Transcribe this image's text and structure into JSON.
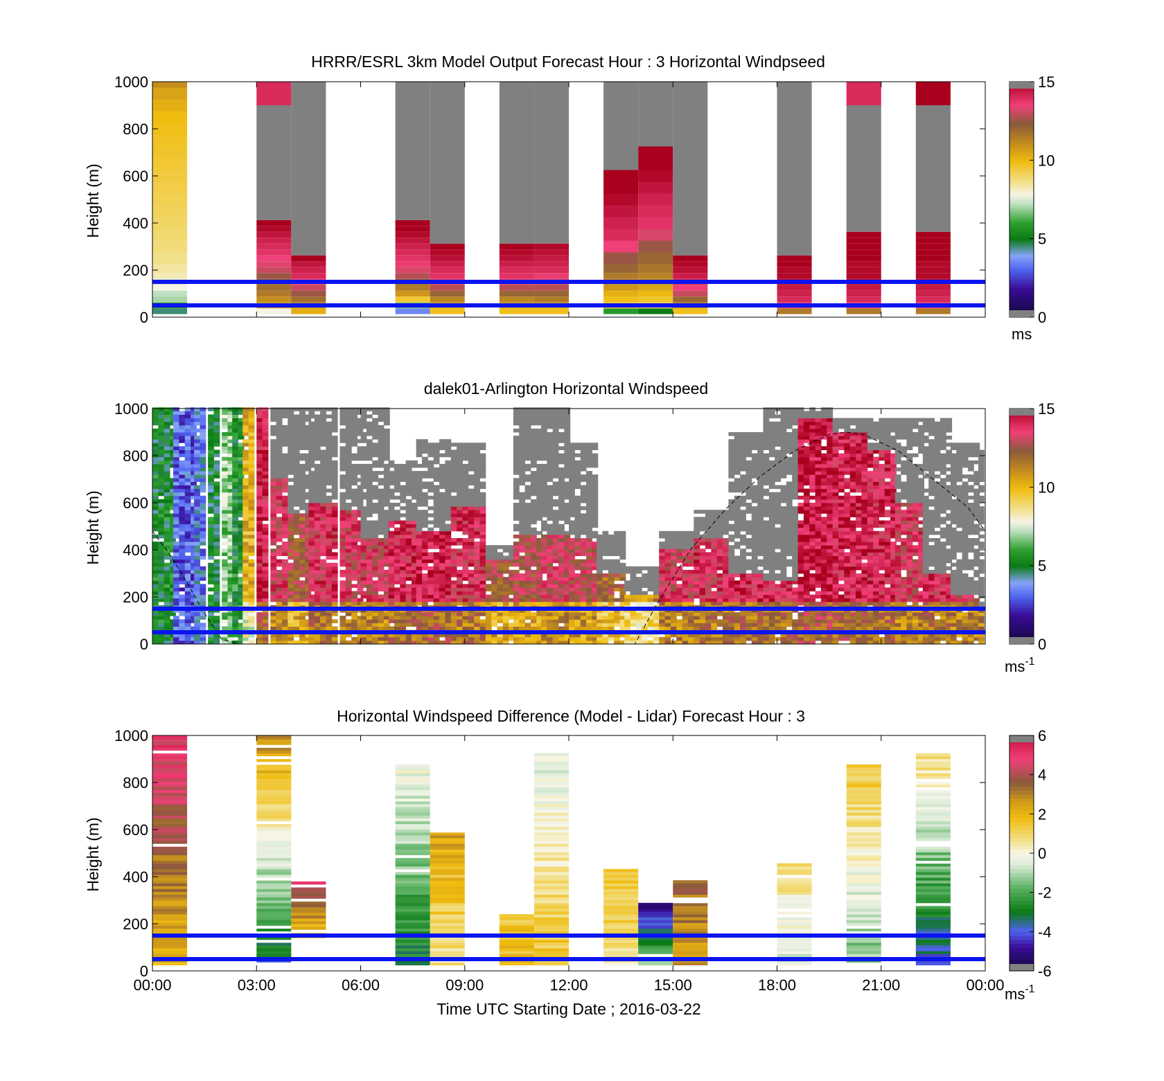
{
  "chart_data": [
    {
      "type": "heatmap",
      "title": "HRRR/ESRL 3km Model Output   Forecast Hour : 3 Horizontal Windpseed",
      "ylabel": "Height (m)",
      "ylim": [
        0,
        1000
      ],
      "yticks": [
        "0",
        "200",
        "400",
        "600",
        "800",
        "1000"
      ],
      "xlim_hours": [
        0,
        24
      ],
      "colorbar": {
        "ticks": [
          "0",
          "5",
          "10",
          "15"
        ],
        "range": [
          0,
          15
        ],
        "unit": "ms",
        "unit_sup": ""
      },
      "reference_lines_m": [
        50,
        150
      ],
      "columns": [
        {
          "start_h": 0,
          "end_h": 1,
          "heights_m": [
            25,
            50,
            75,
            100,
            125,
            150,
            175,
            200,
            250,
            300,
            350,
            400,
            450,
            500,
            550,
            600,
            650,
            700,
            750,
            800,
            850,
            900,
            950,
            1000
          ],
          "speeds": [
            4.5,
            5.8,
            7.0,
            7.2,
            7.8,
            7.5,
            8.2,
            8.4,
            8.6,
            8.8,
            8.9,
            9.0,
            9.1,
            9.2,
            9.3,
            9.4,
            9.5,
            9.6,
            9.7,
            9.8,
            9.9,
            10.2,
            10.5,
            11.0
          ]
        },
        {
          "start_h": 3,
          "end_h": 4,
          "heights_m": [
            25,
            50,
            75,
            100,
            125,
            150,
            175,
            200,
            225,
            250,
            275,
            300,
            325,
            350,
            375,
            400
          ],
          "speeds": [
            7.8,
            10.5,
            11.0,
            11.5,
            11.8,
            12.0,
            12.5,
            13.0,
            13.3,
            13.5,
            13.8,
            14.0,
            14.2,
            14.5,
            14.8,
            15.0
          ],
          "gray_top_m": 900,
          "cap_speed": 14.0
        },
        {
          "start_h": 4,
          "end_h": 5,
          "heights_m": [
            25,
            50,
            75,
            100,
            125,
            150,
            175,
            200,
            225,
            250
          ],
          "speeds": [
            10.2,
            11.0,
            11.8,
            12.5,
            13.0,
            13.5,
            14.0,
            14.2,
            14.5,
            15.0
          ],
          "gray_top_m": 1000
        },
        {
          "start_h": 7,
          "end_h": 8,
          "heights_m": [
            25,
            50,
            75,
            100,
            125,
            150,
            175,
            200,
            225,
            250,
            275,
            300,
            325,
            350,
            375,
            400
          ],
          "speeds": [
            3.5,
            6.5,
            9.5,
            10.8,
            11.5,
            12.0,
            12.8,
            13.2,
            13.6,
            13.8,
            14.0,
            14.2,
            14.5,
            14.8,
            15.0,
            15.2
          ],
          "gray_top_m": 1000
        },
        {
          "start_h": 8,
          "end_h": 9,
          "heights_m": [
            25,
            50,
            75,
            100,
            125,
            150,
            175,
            200,
            225,
            250,
            275,
            300
          ],
          "speeds": [
            9.8,
            10.5,
            11.2,
            12.0,
            12.8,
            13.3,
            13.8,
            14.0,
            14.3,
            14.6,
            14.8,
            15.0
          ],
          "gray_top_m": 1000
        },
        {
          "start_h": 10,
          "end_h": 11,
          "heights_m": [
            25,
            50,
            75,
            100,
            125,
            150,
            175,
            200,
            225,
            250,
            275,
            300
          ],
          "speeds": [
            9.8,
            10.5,
            11.2,
            12.0,
            12.8,
            13.3,
            13.8,
            14.0,
            14.3,
            14.6,
            14.8,
            15.0
          ],
          "gray_top_m": 1000
        },
        {
          "start_h": 11,
          "end_h": 12,
          "heights_m": [
            25,
            50,
            75,
            100,
            125,
            150,
            175,
            200,
            225,
            250,
            275,
            300
          ],
          "speeds": [
            9.8,
            10.5,
            11.5,
            12.0,
            12.8,
            13.2,
            13.6,
            14.0,
            14.2,
            14.4,
            14.6,
            14.8
          ],
          "gray_top_m": 1000
        },
        {
          "start_h": 13,
          "end_h": 14,
          "heights_m": [
            25,
            50,
            75,
            100,
            125,
            150,
            175,
            200,
            250,
            300,
            350,
            400,
            450,
            500,
            550,
            600
          ],
          "speeds": [
            5.8,
            9.5,
            9.8,
            10.2,
            10.8,
            11.2,
            11.5,
            12.0,
            12.5,
            13.5,
            14.0,
            14.2,
            14.5,
            14.8,
            15.0,
            15.2
          ],
          "gray_top_m": 1000
        },
        {
          "start_h": 14,
          "end_h": 15,
          "heights_m": [
            25,
            50,
            75,
            100,
            125,
            150,
            175,
            200,
            250,
            300,
            350,
            400,
            450,
            500,
            550,
            600,
            650,
            700
          ],
          "speeds": [
            5.0,
            9.2,
            9.6,
            10.0,
            10.5,
            11.0,
            11.3,
            11.6,
            12.0,
            12.5,
            13.2,
            13.8,
            14.0,
            14.2,
            14.5,
            14.8,
            15.0,
            15.2
          ],
          "gray_top_m": 1000
        },
        {
          "start_h": 15,
          "end_h": 16,
          "heights_m": [
            25,
            50,
            75,
            100,
            125,
            150,
            175,
            200,
            225,
            250
          ],
          "speeds": [
            9.8,
            11.0,
            12.0,
            13.0,
            13.5,
            14.0,
            14.3,
            14.6,
            14.8,
            15.0
          ],
          "gray_top_m": 1000
        },
        {
          "start_h": 18,
          "end_h": 19,
          "heights_m": [
            25,
            50,
            75,
            100,
            125,
            150,
            175,
            200,
            225,
            250
          ],
          "speeds": [
            11.5,
            13.5,
            14.0,
            14.2,
            14.4,
            14.6,
            14.8,
            14.8,
            15.0,
            15.0
          ],
          "gray_top_m": 1000
        },
        {
          "start_h": 20,
          "end_h": 21,
          "heights_m": [
            25,
            50,
            75,
            100,
            125,
            150,
            175,
            200,
            225,
            250,
            275,
            300,
            325,
            350
          ],
          "speeds": [
            11.5,
            13.5,
            14.0,
            14.2,
            14.4,
            14.6,
            14.8,
            14.8,
            14.8,
            15.0,
            15.0,
            15.0,
            15.2,
            15.2
          ],
          "gray_top_m": 900,
          "cap_speed": 14.0
        },
        {
          "start_h": 22,
          "end_h": 23,
          "heights_m": [
            25,
            50,
            75,
            100,
            125,
            150,
            175,
            200,
            225,
            250,
            275,
            300,
            325,
            350
          ],
          "speeds": [
            11.5,
            13.5,
            14.0,
            14.2,
            14.4,
            14.6,
            14.8,
            14.8,
            14.8,
            15.0,
            15.0,
            15.0,
            15.2,
            15.2
          ],
          "gray_top_m": 900,
          "cap_speed": 15.2
        }
      ]
    },
    {
      "type": "heatmap",
      "title": "dalek01-Arlington  Horizontal Windspeed",
      "ylabel": "Height (m)",
      "ylim": [
        0,
        1000
      ],
      "yticks": [
        "0",
        "200",
        "400",
        "600",
        "800",
        "1000"
      ],
      "xlim_hours": [
        0,
        24
      ],
      "colorbar": {
        "ticks": [
          "0",
          "5",
          "10",
          "15"
        ],
        "range": [
          0,
          15
        ],
        "unit": "ms",
        "unit_sup": "-1"
      },
      "reference_lines_m": [
        50,
        150
      ],
      "cloud_base_curve": {
        "x_hours": [
          0,
          0.5,
          1,
          1.5,
          2.0,
          2.5,
          13.9,
          14.5,
          15.5,
          16.5,
          17.5,
          18.5,
          19.5,
          20.0,
          20.5,
          21.5,
          22.5,
          23.5,
          24
        ],
        "height_m": [
          480,
          380,
          260,
          130,
          20,
          0,
          0,
          160,
          400,
          570,
          710,
          820,
          890,
          900,
          890,
          820,
          700,
          580,
          480
        ]
      },
      "segments": [
        {
          "start_h": 0.0,
          "end_h": 0.6,
          "mean_speed": 5.2,
          "top_m": 1000,
          "sat_top_m": 1000
        },
        {
          "start_h": 0.6,
          "end_h": 1.2,
          "mean_speed": 3.0,
          "top_m": 1000,
          "sat_top_m": 1000
        },
        {
          "start_h": 1.2,
          "end_h": 1.6,
          "mean_speed": 3.5,
          "top_m": 1000,
          "sat_top_m": 1000
        },
        {
          "start_h": 1.6,
          "end_h": 2.0,
          "mean_speed": 5.0,
          "top_m": 1000,
          "sat_top_m": 1000
        },
        {
          "start_h": 2.0,
          "end_h": 2.3,
          "mean_speed": 6.8,
          "top_m": 1000,
          "sat_top_m": 1000
        },
        {
          "start_h": 2.3,
          "end_h": 2.6,
          "mean_speed": 5.5,
          "top_m": 1000,
          "sat_top_m": 1000
        },
        {
          "start_h": 2.6,
          "end_h": 3.0,
          "mean_speed": 10.2,
          "top_m": 1000,
          "sat_top_m": 1000
        },
        {
          "start_h": 3.0,
          "end_h": 3.4,
          "mean_speed": 14.0,
          "top_m": 1000,
          "sat_top_m": 1000
        },
        {
          "start_h": 3.4,
          "end_h": 3.9,
          "mean_speed": 13.5,
          "top_m": 700,
          "sat_top_m": 1000
        },
        {
          "start_h": 3.9,
          "end_h": 4.5,
          "mean_speed": 12.5,
          "top_m": 550,
          "sat_top_m": 1000
        },
        {
          "start_h": 4.5,
          "end_h": 5.4,
          "mean_speed": 13.8,
          "top_m": 600,
          "sat_top_m": 1000
        },
        {
          "start_h": 5.4,
          "end_h": 6.0,
          "mean_speed": 13.5,
          "top_m": 560,
          "sat_top_m": 1000
        },
        {
          "start_h": 6.0,
          "end_h": 6.8,
          "mean_speed": 13.5,
          "top_m": 450,
          "sat_top_m": 1000
        },
        {
          "start_h": 6.8,
          "end_h": 7.6,
          "mean_speed": 14.0,
          "top_m": 520,
          "sat_top_m": 780
        },
        {
          "start_h": 7.6,
          "end_h": 8.6,
          "mean_speed": 14.2,
          "top_m": 470,
          "sat_top_m": 860
        },
        {
          "start_h": 8.6,
          "end_h": 9.6,
          "mean_speed": 13.8,
          "top_m": 580,
          "sat_top_m": 850
        },
        {
          "start_h": 9.6,
          "end_h": 10.4,
          "mean_speed": 12.5,
          "top_m": 360,
          "sat_top_m": 420
        },
        {
          "start_h": 10.4,
          "end_h": 11.2,
          "mean_speed": 12.8,
          "top_m": 460,
          "sat_top_m": 1000
        },
        {
          "start_h": 11.2,
          "end_h": 12.0,
          "mean_speed": 13.2,
          "top_m": 460,
          "sat_top_m": 1000
        },
        {
          "start_h": 12.0,
          "end_h": 12.8,
          "mean_speed": 13.0,
          "top_m": 440,
          "sat_top_m": 850
        },
        {
          "start_h": 12.8,
          "end_h": 13.6,
          "mean_speed": 12.0,
          "top_m": 300,
          "sat_top_m": 480
        },
        {
          "start_h": 13.6,
          "end_h": 14.6,
          "mean_speed": 11.0,
          "top_m": 200,
          "sat_top_m": 320
        },
        {
          "start_h": 14.6,
          "end_h": 15.6,
          "mean_speed": 13.5,
          "top_m": 400,
          "sat_top_m": 480
        },
        {
          "start_h": 15.6,
          "end_h": 16.6,
          "mean_speed": 13.8,
          "top_m": 440,
          "sat_top_m": 560
        },
        {
          "start_h": 16.6,
          "end_h": 17.6,
          "mean_speed": 14.0,
          "top_m": 300,
          "sat_top_m": 900
        },
        {
          "start_h": 17.6,
          "end_h": 18.6,
          "mean_speed": 14.0,
          "top_m": 260,
          "sat_top_m": 1000
        },
        {
          "start_h": 18.6,
          "end_h": 19.6,
          "mean_speed": 14.5,
          "top_m": 950,
          "sat_top_m": 1000
        },
        {
          "start_h": 19.6,
          "end_h": 20.6,
          "mean_speed": 14.2,
          "top_m": 900,
          "sat_top_m": 950
        },
        {
          "start_h": 20.6,
          "end_h": 21.4,
          "mean_speed": 14.0,
          "top_m": 820,
          "sat_top_m": 950
        },
        {
          "start_h": 21.4,
          "end_h": 22.2,
          "mean_speed": 13.5,
          "top_m": 600,
          "sat_top_m": 950
        },
        {
          "start_h": 22.2,
          "end_h": 23.0,
          "mean_speed": 13.8,
          "top_m": 300,
          "sat_top_m": 950
        },
        {
          "start_h": 23.0,
          "end_h": 23.8,
          "mean_speed": 13.5,
          "top_m": 200,
          "sat_top_m": 850
        },
        {
          "start_h": 23.8,
          "end_h": 24.0,
          "mean_speed": 13.5,
          "top_m": 150,
          "sat_top_m": 820
        }
      ]
    },
    {
      "type": "heatmap",
      "title": "Horizontal Windspeed Difference (Model - Lidar) Forecast Hour : 3",
      "ylabel": "Height (m)",
      "xlabel": "Time UTC  Starting Date ; 2016-03-22",
      "ylim": [
        0,
        1000
      ],
      "yticks": [
        "0",
        "200",
        "400",
        "600",
        "800",
        "1000"
      ],
      "xticks": [
        "00:00",
        "03:00",
        "06:00",
        "09:00",
        "12:00",
        "15:00",
        "18:00",
        "21:00",
        "00:00"
      ],
      "xlim_hours": [
        0,
        24
      ],
      "colorbar": {
        "ticks": [
          "-6",
          "-4",
          "-2",
          "0",
          "2",
          "4",
          "6"
        ],
        "range": [
          -6,
          6
        ],
        "unit": "ms",
        "unit_sup": "-1"
      },
      "reference_lines_m": [
        50,
        150
      ],
      "columns": [
        {
          "start_h": 0,
          "end_h": 1,
          "bottom_m": 25,
          "top_m": 1000,
          "diff_bottom": 2.0,
          "diff_top": 5.0
        },
        {
          "start_h": 3,
          "end_h": 4,
          "bottom_m": 25,
          "top_m": 1000,
          "diff_bottom": -3.5,
          "diff_top": 3.0
        },
        {
          "start_h": 4,
          "end_h": 5,
          "bottom_m": 140,
          "top_m": 370,
          "diff_bottom": 1.5,
          "diff_top": 4.5
        },
        {
          "start_h": 7,
          "end_h": 8,
          "bottom_m": 25,
          "top_m": 870,
          "diff_bottom": -3.0,
          "diff_top": 0.0
        },
        {
          "start_h": 8,
          "end_h": 9,
          "bottom_m": 25,
          "top_m": 600,
          "diff_bottom": 0.5,
          "diff_top": 2.5
        },
        {
          "start_h": 10,
          "end_h": 11,
          "bottom_m": 25,
          "top_m": 240,
          "diff_bottom": 1.8,
          "diff_top": 1.5
        },
        {
          "start_h": 11,
          "end_h": 12,
          "bottom_m": 25,
          "top_m": 920,
          "diff_bottom": 1.5,
          "diff_top": -0.5
        },
        {
          "start_h": 13,
          "end_h": 14,
          "bottom_m": 25,
          "top_m": 430,
          "diff_bottom": 0.5,
          "diff_top": 1.8
        },
        {
          "start_h": 14,
          "end_h": 15,
          "bottom_m": 25,
          "top_m": 280,
          "diff_bottom": -1.0,
          "diff_top": -5.5
        },
        {
          "start_h": 15,
          "end_h": 16,
          "bottom_m": 25,
          "top_m": 380,
          "diff_bottom": 2.5,
          "diff_top": 3.5
        },
        {
          "start_h": 18,
          "end_h": 19,
          "bottom_m": 25,
          "top_m": 450,
          "diff_bottom": -0.8,
          "diff_top": 0.8
        },
        {
          "start_h": 20,
          "end_h": 21,
          "bottom_m": 25,
          "top_m": 870,
          "diff_bottom": -1.5,
          "diff_top": 1.5
        },
        {
          "start_h": 22,
          "end_h": 23,
          "bottom_m": 25,
          "top_m": 920,
          "diff_bottom": -4.0,
          "diff_top": 1.0
        }
      ]
    }
  ],
  "colors": {
    "reference_line": "#0a14f0",
    "no_data": "#ffffff",
    "saturated": "#808080"
  }
}
